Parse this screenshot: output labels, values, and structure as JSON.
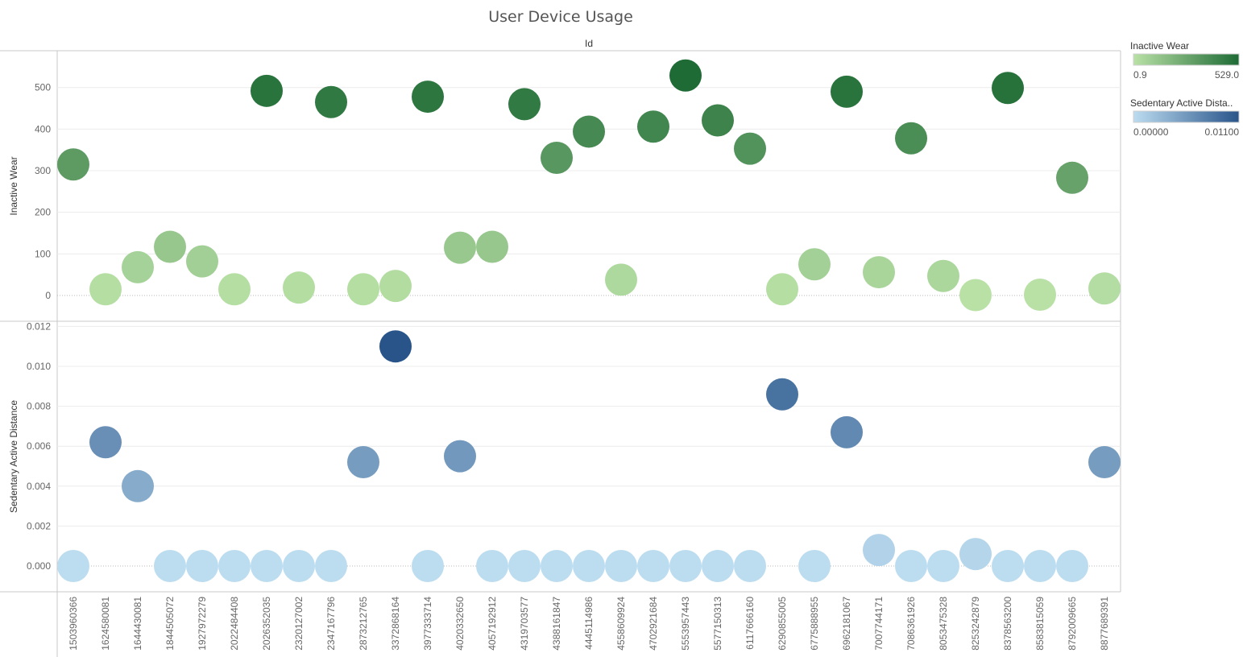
{
  "title": "User Device Usage",
  "column_header": "Id",
  "legends": {
    "inactive_wear": {
      "title": "Inactive Wear",
      "min_label": "0.9",
      "max_label": "529.0",
      "color_low": "#b9e1a6",
      "color_high": "#1e6b35"
    },
    "sedentary": {
      "title": "Sedentary Active Dista..",
      "min_label": "0.00000",
      "max_label": "0.01100",
      "color_low": "#bcdcf0",
      "color_high": "#28548a"
    }
  },
  "chart_data": [
    {
      "type": "scatter",
      "name": "Inactive Wear",
      "ylabel": "Inactive Wear",
      "ylim": [
        -55,
        585
      ],
      "yticks": [
        0,
        100,
        200,
        300,
        400,
        500
      ],
      "ytick_labels": [
        "0",
        "100",
        "200",
        "300",
        "400",
        "500"
      ],
      "color_range": [
        0.9,
        529.0
      ],
      "categories": [
        "1503960366",
        "1624580081",
        "1644430081",
        "1844505072",
        "1927972279",
        "2022484408",
        "2026352035",
        "2320127002",
        "2347167796",
        "2873212765",
        "3372868164",
        "3977333714",
        "4020332650",
        "4057192912",
        "4319703577",
        "4388161847",
        "4445114986",
        "4558609924",
        "4702921684",
        "5553957443",
        "5577150313",
        "6117666160",
        "6290855005",
        "6775888955",
        "6962181067",
        "7007744171",
        "7086361926",
        "8053475328",
        "8253242879",
        "8378563200",
        "8583815059",
        "8792009665",
        "8877689391"
      ],
      "values": [
        315,
        15,
        68,
        117,
        82,
        15,
        492,
        19,
        465,
        15,
        23,
        478,
        115,
        117,
        460,
        331,
        394,
        38,
        406,
        529,
        421,
        353,
        15,
        75,
        490,
        56,
        378,
        47,
        1,
        499,
        2,
        283,
        17
      ]
    },
    {
      "type": "scatter",
      "name": "Sedentary Active Distance",
      "ylabel": "Sedentary Active Distance",
      "ylim": [
        -0.0013,
        0.0125
      ],
      "yticks": [
        0,
        0.002,
        0.004,
        0.006,
        0.008,
        0.01,
        0.012
      ],
      "ytick_labels": [
        "0.000",
        "0.002",
        "0.004",
        "0.006",
        "0.008",
        "0.010",
        "0.012"
      ],
      "color_range": [
        0,
        0.011
      ],
      "categories": [
        "1503960366",
        "1624580081",
        "1644430081",
        "1844505072",
        "1927972279",
        "2022484408",
        "2026352035",
        "2320127002",
        "2347167796",
        "2873212765",
        "3372868164",
        "3977333714",
        "4020332650",
        "4057192912",
        "4319703577",
        "4388161847",
        "4445114986",
        "4558609924",
        "4702921684",
        "5553957443",
        "5577150313",
        "6117666160",
        "6290855005",
        "6775888955",
        "6962181067",
        "7007744171",
        "7086361926",
        "8053475328",
        "8253242879",
        "8378563200",
        "8583815059",
        "8792009665",
        "8877689391"
      ],
      "values": [
        0,
        0.0062,
        0.004,
        0,
        0,
        0,
        0,
        0,
        0,
        0.0052,
        null,
        0,
        0.0055,
        0,
        0,
        0,
        0,
        0,
        0,
        0,
        0,
        0,
        0.0086,
        0,
        0.0067,
        0.0008,
        0,
        0,
        0.0006,
        0,
        0,
        0,
        0.0052
      ]
    }
  ],
  "extra_points": [
    {
      "panel": 1,
      "category": "3372868164",
      "value": 0.011
    }
  ]
}
